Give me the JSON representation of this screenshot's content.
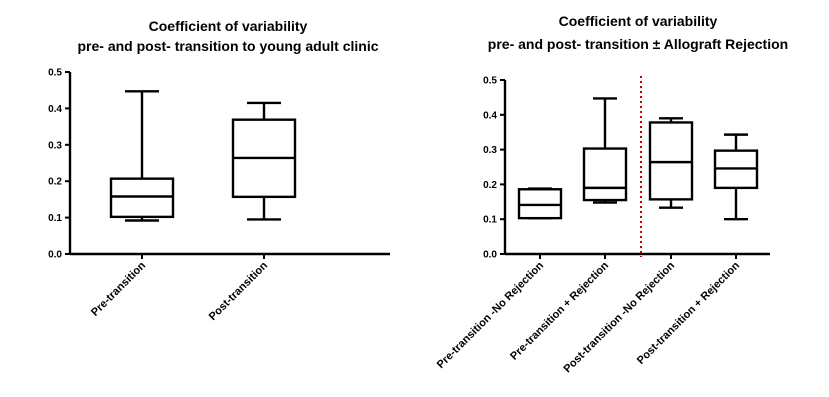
{
  "chart_data": [
    {
      "type": "box",
      "title": "Coefficient of variability",
      "subtitle": "pre- and post- transition to young adult clinic",
      "ylim": [
        0,
        0.5
      ],
      "yticks": [
        "0.0",
        "0.1",
        "0.2",
        "0.3",
        "0.4",
        "0.5"
      ],
      "categories": [
        "Pre-transition",
        "Post-transition"
      ],
      "boxes": [
        {
          "min": 0.092,
          "q1": 0.102,
          "median": 0.158,
          "q3": 0.207,
          "max": 0.447
        },
        {
          "min": 0.095,
          "q1": 0.157,
          "median": 0.264,
          "q3": 0.369,
          "max": 0.415
        }
      ]
    },
    {
      "type": "box",
      "title": "Coefficient of variability",
      "subtitle": "pre- and post- transition ± Allograft Rejection",
      "ylim": [
        0,
        0.5
      ],
      "yticks": [
        "0.0",
        "0.1",
        "0.2",
        "0.3",
        "0.4",
        "0.5"
      ],
      "categories": [
        "Pre-transition -No Rejection",
        "Pre-transition + Rejection",
        "Post-transition -No Rejection",
        "Post-transition + Rejection"
      ],
      "boxes": [
        {
          "min": 0.103,
          "q1": 0.103,
          "median": 0.141,
          "q3": 0.186,
          "max": 0.188
        },
        {
          "min": 0.148,
          "q1": 0.155,
          "median": 0.19,
          "q3": 0.303,
          "max": 0.447
        },
        {
          "min": 0.133,
          "q1": 0.157,
          "median": 0.264,
          "q3": 0.378,
          "max": 0.39
        },
        {
          "min": 0.1,
          "q1": 0.19,
          "median": 0.246,
          "q3": 0.297,
          "max": 0.343
        }
      ],
      "divider": {
        "between": [
          1,
          2
        ],
        "color": "#cc0000",
        "style": "dotted"
      }
    }
  ]
}
